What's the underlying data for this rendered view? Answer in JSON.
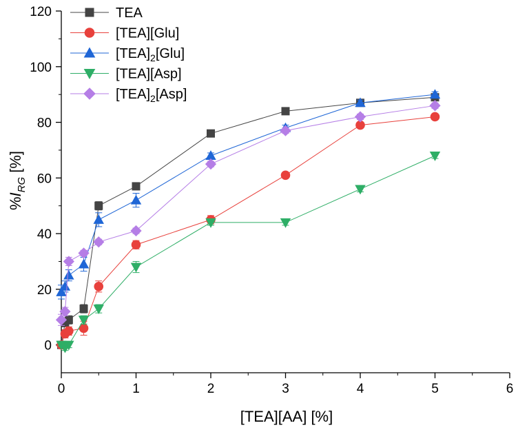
{
  "chart_data": {
    "type": "scatter",
    "title": "",
    "xlabel": "[TEA][AA] [%]",
    "ylabel_prefix": "%",
    "ylabel_symbol": "I",
    "ylabel_subscript": "RG",
    "ylabel_suffix": " [%]",
    "xlim": [
      0,
      6
    ],
    "ylim": [
      -10,
      120
    ],
    "xticks": [
      0,
      1,
      2,
      3,
      4,
      5,
      6
    ],
    "yticks": [
      0,
      20,
      40,
      60,
      80,
      100,
      120
    ],
    "legend_position": "top-left",
    "series": [
      {
        "name": "TEA",
        "name_base": "TEA",
        "name_sub": "",
        "name_tail": "",
        "color": "#444444",
        "marker": "square",
        "x": [
          0,
          0.05,
          0.1,
          0.3,
          0.5,
          1,
          2,
          3,
          4,
          5
        ],
        "y": [
          0,
          8,
          9,
          13,
          50,
          57,
          76,
          84,
          87,
          89
        ],
        "err": [
          1,
          1.5,
          1.5,
          1.5,
          1.5,
          1,
          1,
          1,
          1,
          1
        ]
      },
      {
        "name": "[TEA][Glu]",
        "name_base": "[TEA][Glu]",
        "name_sub": "",
        "name_tail": "",
        "color": "#e8413c",
        "marker": "circle",
        "x": [
          0,
          0.05,
          0.1,
          0.3,
          0.5,
          1,
          2,
          3,
          4,
          5
        ],
        "y": [
          0,
          4,
          5,
          6,
          21,
          36,
          45,
          61,
          79,
          82
        ],
        "err": [
          1,
          1.5,
          1.5,
          2.5,
          2,
          1.5,
          1.5,
          1,
          1,
          1
        ]
      },
      {
        "name": "[TEA]2[Glu]",
        "name_base": "[TEA]",
        "name_sub": "2",
        "name_tail": "[Glu]",
        "color": "#1f66d6",
        "marker": "triangle-up",
        "x": [
          0,
          0.05,
          0.1,
          0.3,
          0.5,
          1,
          2,
          3,
          4,
          5
        ],
        "y": [
          19,
          21,
          25,
          29,
          45,
          52,
          68,
          78,
          87,
          90
        ],
        "err": [
          2.5,
          2,
          2,
          2.5,
          2.5,
          2.5,
          1,
          1,
          1,
          1
        ]
      },
      {
        "name": "[TEA][Asp]",
        "name_base": "[TEA][Asp]",
        "name_sub": "",
        "name_tail": "",
        "color": "#2eae66",
        "marker": "triangle-down",
        "x": [
          0,
          0.05,
          0.1,
          0.3,
          0.5,
          1,
          2,
          3,
          4,
          5
        ],
        "y": [
          0,
          -1,
          0,
          9,
          13,
          28,
          44,
          44,
          56,
          68
        ],
        "err": [
          0.5,
          1,
          1,
          1.5,
          1.5,
          2,
          1,
          1,
          1,
          1
        ]
      },
      {
        "name": "[TEA]2[Asp]",
        "name_base": "[TEA]",
        "name_sub": "2",
        "name_tail": "[Asp]",
        "color": "#b57ee6",
        "marker": "diamond",
        "x": [
          0,
          0.05,
          0.1,
          0.3,
          0.5,
          1,
          2,
          3,
          4,
          5
        ],
        "y": [
          9,
          12,
          30,
          33,
          37,
          41,
          65,
          77,
          82,
          86
        ],
        "err": [
          2,
          1.5,
          1.5,
          1,
          1,
          1,
          1,
          1,
          1,
          1
        ]
      }
    ]
  }
}
